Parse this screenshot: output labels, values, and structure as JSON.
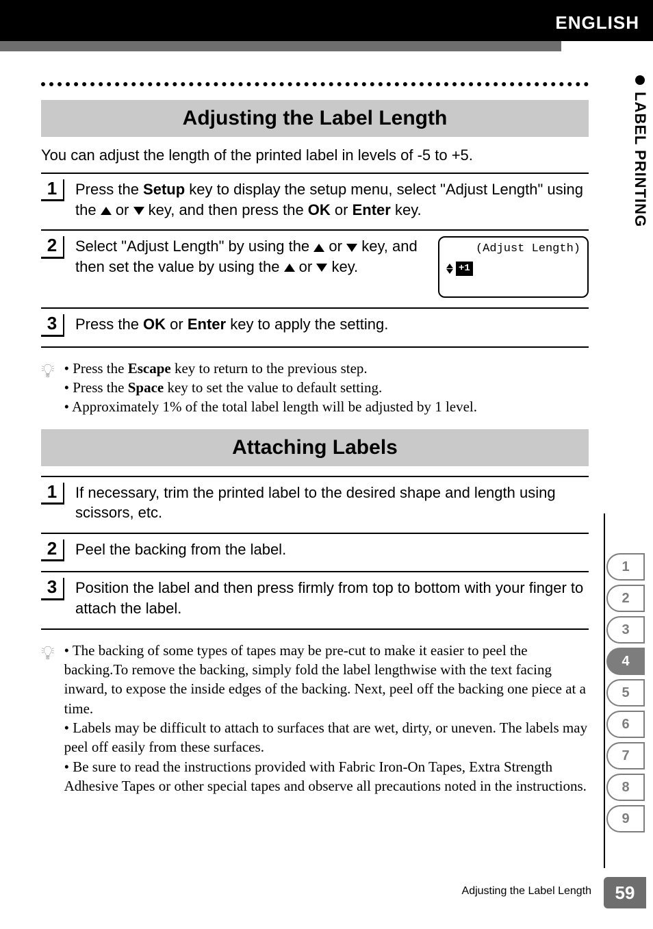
{
  "header": {
    "language": "ENGLISH"
  },
  "side_tab": {
    "label": "LABEL PRINTING"
  },
  "section1": {
    "title": "Adjusting the Label Length",
    "intro": "You can adjust the length of the printed label in levels of -5 to +5.",
    "steps": [
      {
        "num": "1",
        "pre": "Press the ",
        "b1": "Setup",
        "mid1": " key to display the setup menu, select \"Adjust Length\" using the ",
        "mid2": " or ",
        "mid3": " key, and then press the ",
        "b2": "OK",
        "mid4": " or ",
        "b3": "Enter",
        "post": " key."
      },
      {
        "num": "2",
        "pre": "Select \"Adjust Length\" by using the ",
        "mid1": " or ",
        "mid2": " key, and then set the value by using the ",
        "mid3": " or ",
        "post": " key.",
        "lcd_title": "(Adjust Length)",
        "lcd_badge": "+1"
      },
      {
        "num": "3",
        "pre": "Press the ",
        "b1": "OK",
        "mid1": " or ",
        "b2": "Enter",
        "post": " key to apply the setting."
      }
    ],
    "tips": [
      {
        "pre": "Press the ",
        "b": "Escape",
        "post": " key to return to the previous step."
      },
      {
        "pre": "Press the ",
        "b": "Space",
        "post": " key to set the value to default setting."
      },
      {
        "text": "Approximately 1% of the total label length will be adjusted by 1 level."
      }
    ]
  },
  "section2": {
    "title": "Attaching Labels",
    "steps": [
      {
        "num": "1",
        "text": "If necessary, trim the printed label to the desired shape and length using scissors, etc."
      },
      {
        "num": "2",
        "text": "Peel the backing from the label."
      },
      {
        "num": "3",
        "text": "Position the label and then press firmly from top to bottom with your finger to attach the label."
      }
    ],
    "tips": [
      {
        "text": "The backing of some types of tapes may be pre-cut to make it easier to peel the backing.To remove the backing, simply fold the label lengthwise with the text facing inward, to expose the inside edges of the backing. Next, peel off the backing one piece at a time."
      },
      {
        "text": "Labels may be difficult to attach to surfaces that are wet, dirty, or uneven. The labels may peel off easily from these surfaces."
      },
      {
        "text": "Be sure to read the instructions provided with Fabric Iron-On Tapes, Extra Strength Adhesive Tapes or other special tapes and observe all precautions noted in the instructions."
      }
    ]
  },
  "chapter_tabs": {
    "items": [
      "1",
      "2",
      "3",
      "4",
      "5",
      "6",
      "7",
      "8",
      "9"
    ],
    "active_index": 3
  },
  "footer": {
    "title": "Adjusting the Label Length",
    "page": "59"
  },
  "colors": {
    "topbar": "#000000",
    "topbar_cut": "#6e6e6e",
    "section_bg": "#c9c9c9",
    "tab_border": "#7d7d7d"
  }
}
